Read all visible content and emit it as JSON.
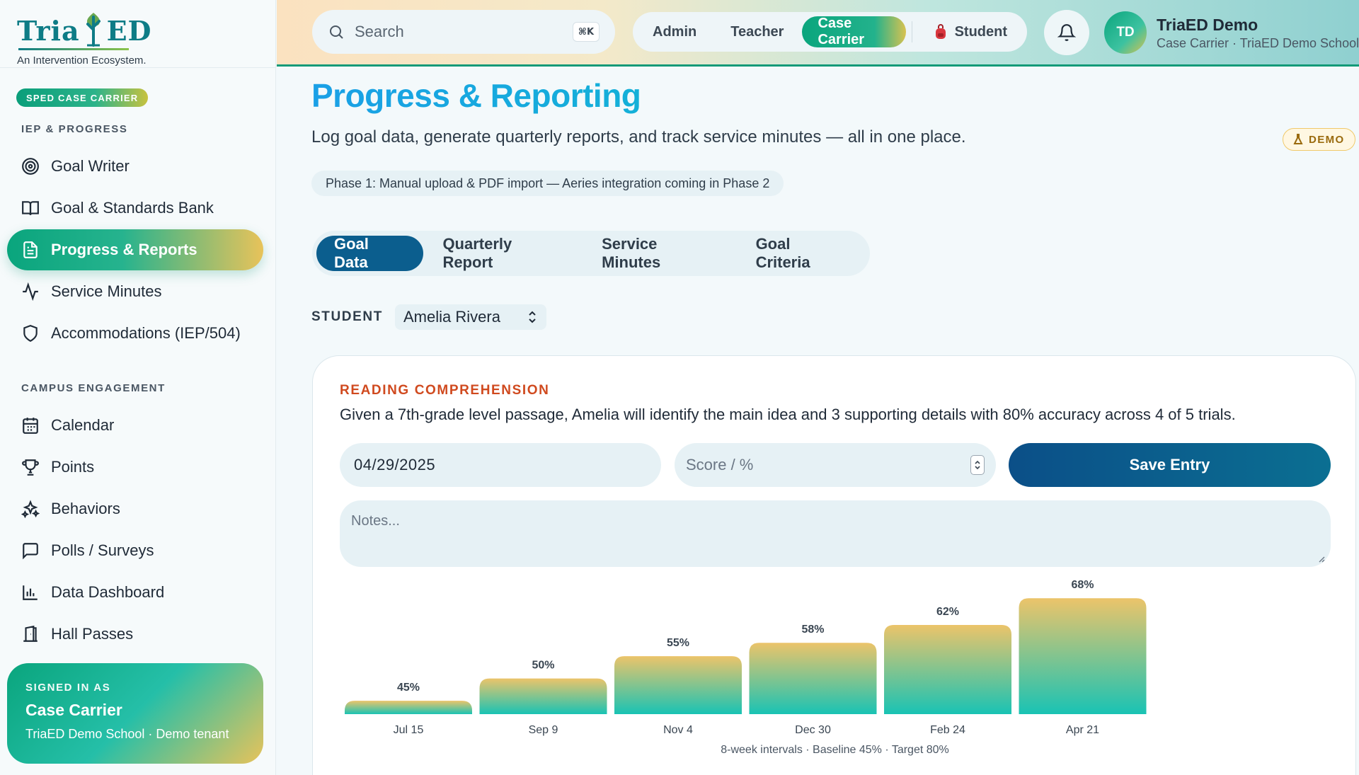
{
  "brand": {
    "logo_left": "Tria",
    "logo_right": "ED",
    "tagline": "An Intervention Ecosystem."
  },
  "sidebar": {
    "role_pill": "SPED CASE CARRIER",
    "section1": "IEP & PROGRESS",
    "section2": "CAMPUS ENGAGEMENT",
    "items": [
      {
        "label": "Goal Writer",
        "icon": "target-icon"
      },
      {
        "label": "Goal & Standards Bank",
        "icon": "book-icon"
      },
      {
        "label": "Progress & Reports",
        "icon": "document-icon",
        "active": true
      },
      {
        "label": "Service Minutes",
        "icon": "pulse-icon"
      },
      {
        "label": "Accommodations (IEP/504)",
        "icon": "shield-icon"
      },
      {
        "label": "Calendar",
        "icon": "calendar-icon"
      },
      {
        "label": "Points",
        "icon": "trophy-icon"
      },
      {
        "label": "Behaviors",
        "icon": "sparkles-icon"
      },
      {
        "label": "Polls / Surveys",
        "icon": "message-icon"
      },
      {
        "label": "Data Dashboard",
        "icon": "bar-chart-icon"
      },
      {
        "label": "Hall Passes",
        "icon": "door-icon"
      }
    ],
    "signed_in": {
      "label": "SIGNED IN AS",
      "role": "Case Carrier",
      "tenant": "TriaED Demo School · Demo tenant"
    }
  },
  "topbar": {
    "search_placeholder": "Search",
    "shortcut": "⌘K",
    "roles": [
      "Admin",
      "Teacher",
      "Case Carrier",
      "Student"
    ],
    "active_role": "Case Carrier",
    "avatar_initials": "TD",
    "user_name": "TriaED Demo",
    "user_sub": "Case Carrier · TriaED Demo School"
  },
  "page": {
    "title": "Progress & Reporting",
    "subtitle": "Log goal data, generate quarterly reports, and track service minutes — all in one place.",
    "demo_badge": "DEMO",
    "phase_note": "Phase 1: Manual upload & PDF import — Aeries integration coming in Phase 2",
    "tabs": [
      "Goal Data",
      "Quarterly Report",
      "Service Minutes",
      "Goal Criteria"
    ],
    "active_tab": "Goal Data",
    "student_label": "STUDENT",
    "student_value": "Amelia Rivera"
  },
  "goal": {
    "area": "READING COMPREHENSION",
    "text": "Given a 7th-grade level passage, Amelia will identify the main idea and 3 supporting details with 80% accuracy across 4 of 5 trials.",
    "date_value": "04/29/2025",
    "score_placeholder": "Score / %",
    "save_label": "Save Entry",
    "notes_placeholder": "Notes..."
  },
  "chart_data": {
    "type": "bar",
    "categories": [
      "Jul 15",
      "Sep 9",
      "Nov 4",
      "Dec 30",
      "Feb 24",
      "Apr 21"
    ],
    "values": [
      45,
      50,
      55,
      58,
      62,
      68
    ],
    "value_labels": [
      "45%",
      "50%",
      "55%",
      "58%",
      "62%",
      "68%"
    ],
    "caption": "8-week intervals · Baseline 45% · Target 80%",
    "colors": {
      "top": "#ecc46a",
      "bottom": "#19c3b4"
    }
  }
}
